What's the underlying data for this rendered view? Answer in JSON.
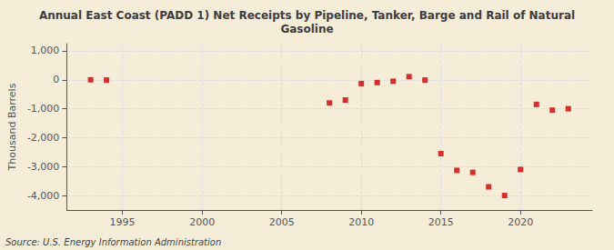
{
  "chart_data": {
    "type": "scatter",
    "title": "Annual East Coast (PADD 1) Net Receipts by Pipeline, Tanker, Barge and Rail of Natural\nGasoline",
    "ylabel": "Thousand Barrels",
    "annotation": "Source: U.S. Energy Information Administration",
    "x": [
      1993,
      1994,
      2008,
      2009,
      2010,
      2011,
      2012,
      2013,
      2014,
      2015,
      2016,
      2017,
      2018,
      2019,
      2020,
      2021,
      2022,
      2023
    ],
    "values": [
      0,
      -10,
      -800,
      -700,
      -130,
      -95,
      -50,
      110,
      -10,
      -2550,
      -3130,
      -3200,
      -3700,
      -4000,
      -3100,
      -850,
      -1050,
      -1000
    ],
    "color": "#cc0000",
    "marker": "square",
    "xlim": [
      1991.5,
      2024.5
    ],
    "xticks": [
      1995,
      2000,
      2005,
      2010,
      2015,
      2020
    ],
    "ylim": [
      -4500,
      1250
    ],
    "yticks": [
      {
        "value": -4000,
        "label": "-4,000"
      },
      {
        "value": -3000,
        "label": "-3,000"
      },
      {
        "value": -2000,
        "label": "-2,000"
      },
      {
        "value": -1000,
        "label": "-1,000"
      },
      0,
      {
        "value": 1000,
        "label": "1,000"
      }
    ],
    "grid": true
  }
}
